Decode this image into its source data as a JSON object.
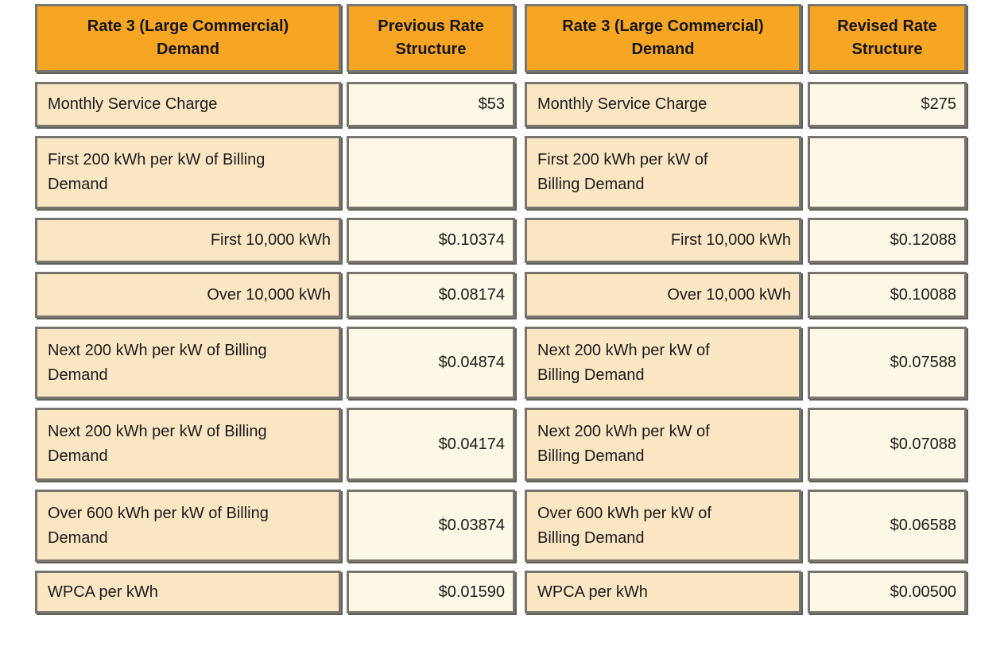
{
  "colors": {
    "header_orange": "#F6A623",
    "label_peach": "#FBE6C4",
    "value_cream": "#FDF8E5",
    "border_gray": "#77756D",
    "text_black": "#1B1B1B"
  },
  "tables": [
    {
      "header": {
        "label_col": "Rate 3 (Large Commercial)\nDemand",
        "value_col": "Previous Rate\nStructure"
      },
      "rows": [
        {
          "label": "Monthly Service Charge",
          "value": "$53"
        },
        {
          "label": "First 200 kWh per kW of Billing\nDemand",
          "value": ""
        },
        {
          "label": "First 10,000 kWh",
          "value": "$0.10374"
        },
        {
          "label": "Over 10,000 kWh",
          "value": "$0.08174"
        },
        {
          "label": "Next 200 kWh per kW of Billing\nDemand",
          "value": "$0.04874"
        },
        {
          "label": "Next 200 kWh per kW of Billing\nDemand",
          "value": "$0.04174"
        },
        {
          "label": "Over 600 kWh per kW of Billing\nDemand",
          "value": "$0.03874"
        },
        {
          "label": "WPCA per kWh",
          "value": "$0.01590"
        }
      ]
    },
    {
      "header": {
        "label_col": "Rate 3 (Large Commercial)\nDemand",
        "value_col": "Revised Rate\nStructure"
      },
      "rows": [
        {
          "label": "Monthly Service Charge",
          "value": "$275"
        },
        {
          "label": "First 200 kWh per kW of\nBilling Demand",
          "value": ""
        },
        {
          "label": "First 10,000 kWh",
          "value": "$0.12088"
        },
        {
          "label": "Over 10,000 kWh",
          "value": "$0.10088"
        },
        {
          "label": "Next 200 kWh per kW of\nBilling Demand",
          "value": "$0.07588"
        },
        {
          "label": "Next 200 kWh per kW of\nBilling Demand",
          "value": "$0.07088"
        },
        {
          "label": "Over 600 kWh per kW of\nBilling Demand",
          "value": "$0.06588"
        },
        {
          "label": "WPCA per kWh",
          "value": "$0.00500"
        }
      ]
    }
  ],
  "chart_data": [
    {
      "type": "table",
      "title": "Rate 3 (Large Commercial) Demand - Previous Rate Structure",
      "columns": [
        "Rate 3 (Large Commercial) Demand",
        "Previous Rate Structure"
      ],
      "rows": [
        [
          "Monthly Service Charge",
          "$53"
        ],
        [
          "First 200 kWh per kW of Billing Demand",
          ""
        ],
        [
          "First 10,000 kWh",
          "$0.10374"
        ],
        [
          "Over 10,000 kWh",
          "$0.08174"
        ],
        [
          "Next 200 kWh per kW of Billing Demand",
          "$0.04874"
        ],
        [
          "Next 200 kWh per kW of Billing Demand",
          "$0.04174"
        ],
        [
          "Over 600 kWh per kW of Billing Demand",
          "$0.03874"
        ],
        [
          "WPCA per kWh",
          "$0.01590"
        ]
      ]
    },
    {
      "type": "table",
      "title": "Rate 3 (Large Commercial) Demand - Revised Rate Structure",
      "columns": [
        "Rate 3 (Large Commercial) Demand",
        "Revised Rate Structure"
      ],
      "rows": [
        [
          "Monthly Service Charge",
          "$275"
        ],
        [
          "First 200 kWh per kW of Billing Demand",
          ""
        ],
        [
          "First 10,000 kWh",
          "$0.12088"
        ],
        [
          "Over 10,000 kWh",
          "$0.10088"
        ],
        [
          "Next 200 kWh per kW of Billing Demand",
          "$0.07588"
        ],
        [
          "Next 200 kWh per kW of Billing Demand",
          "$0.07088"
        ],
        [
          "Over 600 kWh per kW of Billing Demand",
          "$0.06588"
        ],
        [
          "WPCA per kWh",
          "$0.00500"
        ]
      ]
    }
  ]
}
